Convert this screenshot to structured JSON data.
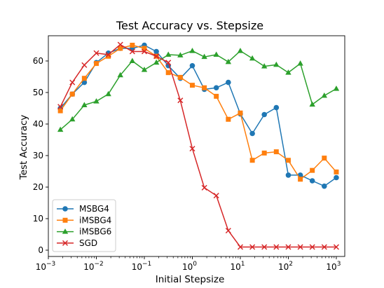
{
  "chart_data": {
    "type": "line",
    "title": "Test Accuracy vs. Stepsize",
    "xlabel": "Initial Stepsize",
    "ylabel": "Test Accuracy",
    "xscale": "log",
    "xlim": [
      0.001,
      1500
    ],
    "ylim": [
      -2,
      68
    ],
    "xticks": [
      {
        "value": 0.001,
        "base": "10",
        "exp": "−3"
      },
      {
        "value": 0.01,
        "base": "10",
        "exp": "−2"
      },
      {
        "value": 0.1,
        "base": "10",
        "exp": "−1"
      },
      {
        "value": 1,
        "base": "10",
        "exp": "0"
      },
      {
        "value": 10,
        "base": "10",
        "exp": "1"
      },
      {
        "value": 100,
        "base": "10",
        "exp": "2"
      },
      {
        "value": 1000,
        "base": "10",
        "exp": "3"
      }
    ],
    "yticks": [
      "0",
      "10",
      "20",
      "30",
      "40",
      "50",
      "60"
    ],
    "grid": false,
    "legend_position": "lower-left",
    "x": [
      0.00178,
      0.00316,
      0.00562,
      0.01,
      0.0178,
      0.0316,
      0.0562,
      0.1,
      0.178,
      0.316,
      0.562,
      1,
      1.78,
      3.16,
      5.62,
      10,
      17.8,
      31.6,
      56.2,
      100,
      178,
      316,
      562,
      1000
    ],
    "series": [
      {
        "name": "MSBG4",
        "color": "#1f77b4",
        "marker": "circle",
        "values": [
          45.0,
          49.5,
          53.2,
          59.5,
          62.5,
          64.0,
          64.0,
          65.0,
          63.0,
          58.5,
          54.5,
          58.5,
          51.0,
          51.5,
          53.2,
          43.2,
          37.0,
          43.0,
          45.2,
          23.8,
          23.8,
          22.0,
          20.3,
          23.0
        ]
      },
      {
        "name": "iMSBG4",
        "color": "#ff7f0e",
        "marker": "square",
        "values": [
          44.2,
          49.5,
          54.5,
          59.2,
          61.5,
          64.0,
          65.0,
          64.0,
          61.5,
          56.3,
          54.8,
          52.3,
          51.5,
          48.8,
          41.5,
          43.5,
          28.5,
          30.8,
          31.2,
          28.5,
          22.5,
          25.3,
          29.2,
          24.8
        ]
      },
      {
        "name": "iMSBG6",
        "color": "#2ca02c",
        "marker": "triangle",
        "values": [
          38.2,
          41.5,
          46.0,
          47.2,
          49.5,
          55.5,
          60.0,
          57.2,
          59.5,
          62.0,
          61.8,
          63.2,
          61.3,
          62.0,
          59.7,
          63.2,
          60.8,
          58.3,
          58.8,
          56.3,
          59.2,
          46.2,
          49.0,
          51.2
        ]
      },
      {
        "name": "SGD",
        "color": "#d62728",
        "marker": "x",
        "values": [
          45.5,
          53.2,
          58.7,
          62.5,
          62.0,
          65.2,
          63.0,
          63.0,
          61.5,
          59.5,
          47.5,
          32.2,
          19.8,
          17.3,
          6.2,
          1.0,
          1.0,
          1.0,
          1.0,
          1.0,
          1.0,
          1.0,
          1.0,
          1.0
        ]
      }
    ]
  }
}
